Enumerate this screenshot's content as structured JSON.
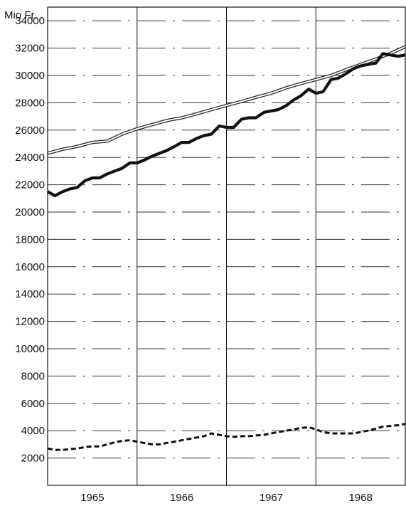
{
  "chart_data": {
    "type": "line",
    "ylabel": "Mio Fr.",
    "ylim": [
      0,
      35000
    ],
    "y_ticks": [
      2000,
      4000,
      6000,
      8000,
      10000,
      12000,
      14000,
      16000,
      18000,
      20000,
      22000,
      24000,
      26000,
      28000,
      30000,
      32000,
      34000
    ],
    "y_tick_labels": [
      "2000",
      "4000",
      "6000",
      "8000",
      "10000",
      "12000",
      "14000",
      "16000",
      "18000",
      "20000",
      "22000",
      "24000",
      "26000",
      "28000",
      "30000",
      "32000",
      "34000"
    ],
    "xlim": [
      1964.5,
      1968.5
    ],
    "x_year_labels": [
      {
        "label": "1965",
        "x": 1965.0
      },
      {
        "label": "1966",
        "x": 1966.0
      },
      {
        "label": "1967",
        "x": 1967.0
      },
      {
        "label": "1968",
        "x": 1968.0
      }
    ],
    "x_boundaries": [
      1965.5,
      1966.5,
      1967.5
    ],
    "grid": true,
    "series": [
      {
        "style": "double",
        "color": "#222222",
        "x": [
          1964.5,
          1964.67,
          1964.83,
          1965.0,
          1965.17,
          1965.33,
          1965.5,
          1965.67,
          1965.83,
          1966.0,
          1966.17,
          1966.33,
          1966.5,
          1966.67,
          1966.83,
          1967.0,
          1967.17,
          1967.33,
          1967.5,
          1967.67,
          1967.83,
          1968.0,
          1968.17,
          1968.33,
          1968.5
        ],
        "values": [
          24300,
          24600,
          24800,
          25100,
          25200,
          25700,
          26100,
          26400,
          26700,
          26900,
          27200,
          27500,
          27800,
          28100,
          28400,
          28700,
          29100,
          29400,
          29700,
          30000,
          30400,
          30800,
          31200,
          31600,
          32100
        ]
      },
      {
        "style": "thick",
        "color": "#111111",
        "x": [
          1964.5,
          1964.58,
          1964.67,
          1964.75,
          1964.83,
          1964.92,
          1965.0,
          1965.08,
          1965.17,
          1965.25,
          1965.33,
          1965.42,
          1965.5,
          1965.58,
          1965.67,
          1965.75,
          1965.83,
          1965.92,
          1966.0,
          1966.08,
          1966.17,
          1966.25,
          1966.33,
          1966.42,
          1966.5,
          1966.58,
          1966.67,
          1966.75,
          1966.83,
          1966.92,
          1967.0,
          1967.08,
          1967.17,
          1967.25,
          1967.33,
          1967.42,
          1967.5,
          1967.58,
          1967.67,
          1967.75,
          1967.83,
          1967.92,
          1968.0,
          1968.08,
          1968.17,
          1968.25,
          1968.33,
          1968.42,
          1968.5
        ],
        "values": [
          21500,
          21200,
          21500,
          21700,
          21800,
          22300,
          22500,
          22500,
          22800,
          23000,
          23200,
          23600,
          23600,
          23800,
          24100,
          24300,
          24500,
          24800,
          25100,
          25100,
          25400,
          25600,
          25700,
          26300,
          26200,
          26200,
          26800,
          26900,
          26900,
          27300,
          27400,
          27500,
          27800,
          28200,
          28500,
          29000,
          28700,
          28800,
          29700,
          29800,
          30100,
          30500,
          30700,
          30800,
          30900,
          31600,
          31500,
          31400,
          31500
        ]
      },
      {
        "style": "dashed",
        "color": "#111111",
        "x": [
          1964.5,
          1964.58,
          1964.67,
          1964.75,
          1964.83,
          1964.92,
          1965.0,
          1965.08,
          1965.17,
          1965.25,
          1965.33,
          1965.42,
          1965.5,
          1965.58,
          1965.67,
          1965.75,
          1965.83,
          1965.92,
          1966.0,
          1966.08,
          1966.17,
          1966.25,
          1966.33,
          1966.42,
          1966.5,
          1966.58,
          1966.67,
          1966.75,
          1966.83,
          1966.92,
          1967.0,
          1967.08,
          1967.17,
          1967.25,
          1967.33,
          1967.42,
          1967.5,
          1967.58,
          1967.67,
          1967.75,
          1967.83,
          1967.92,
          1968.0,
          1968.08,
          1968.17,
          1968.25,
          1968.33,
          1968.42,
          1968.5
        ],
        "values": [
          2700,
          2600,
          2600,
          2650,
          2700,
          2800,
          2850,
          2850,
          3000,
          3150,
          3250,
          3300,
          3200,
          3100,
          3000,
          3000,
          3100,
          3200,
          3300,
          3400,
          3500,
          3600,
          3800,
          3700,
          3600,
          3550,
          3600,
          3600,
          3650,
          3700,
          3800,
          3900,
          4000,
          4100,
          4200,
          4250,
          4100,
          3900,
          3800,
          3800,
          3800,
          3800,
          3900,
          4000,
          4150,
          4300,
          4350,
          4400,
          4500
        ]
      }
    ]
  }
}
